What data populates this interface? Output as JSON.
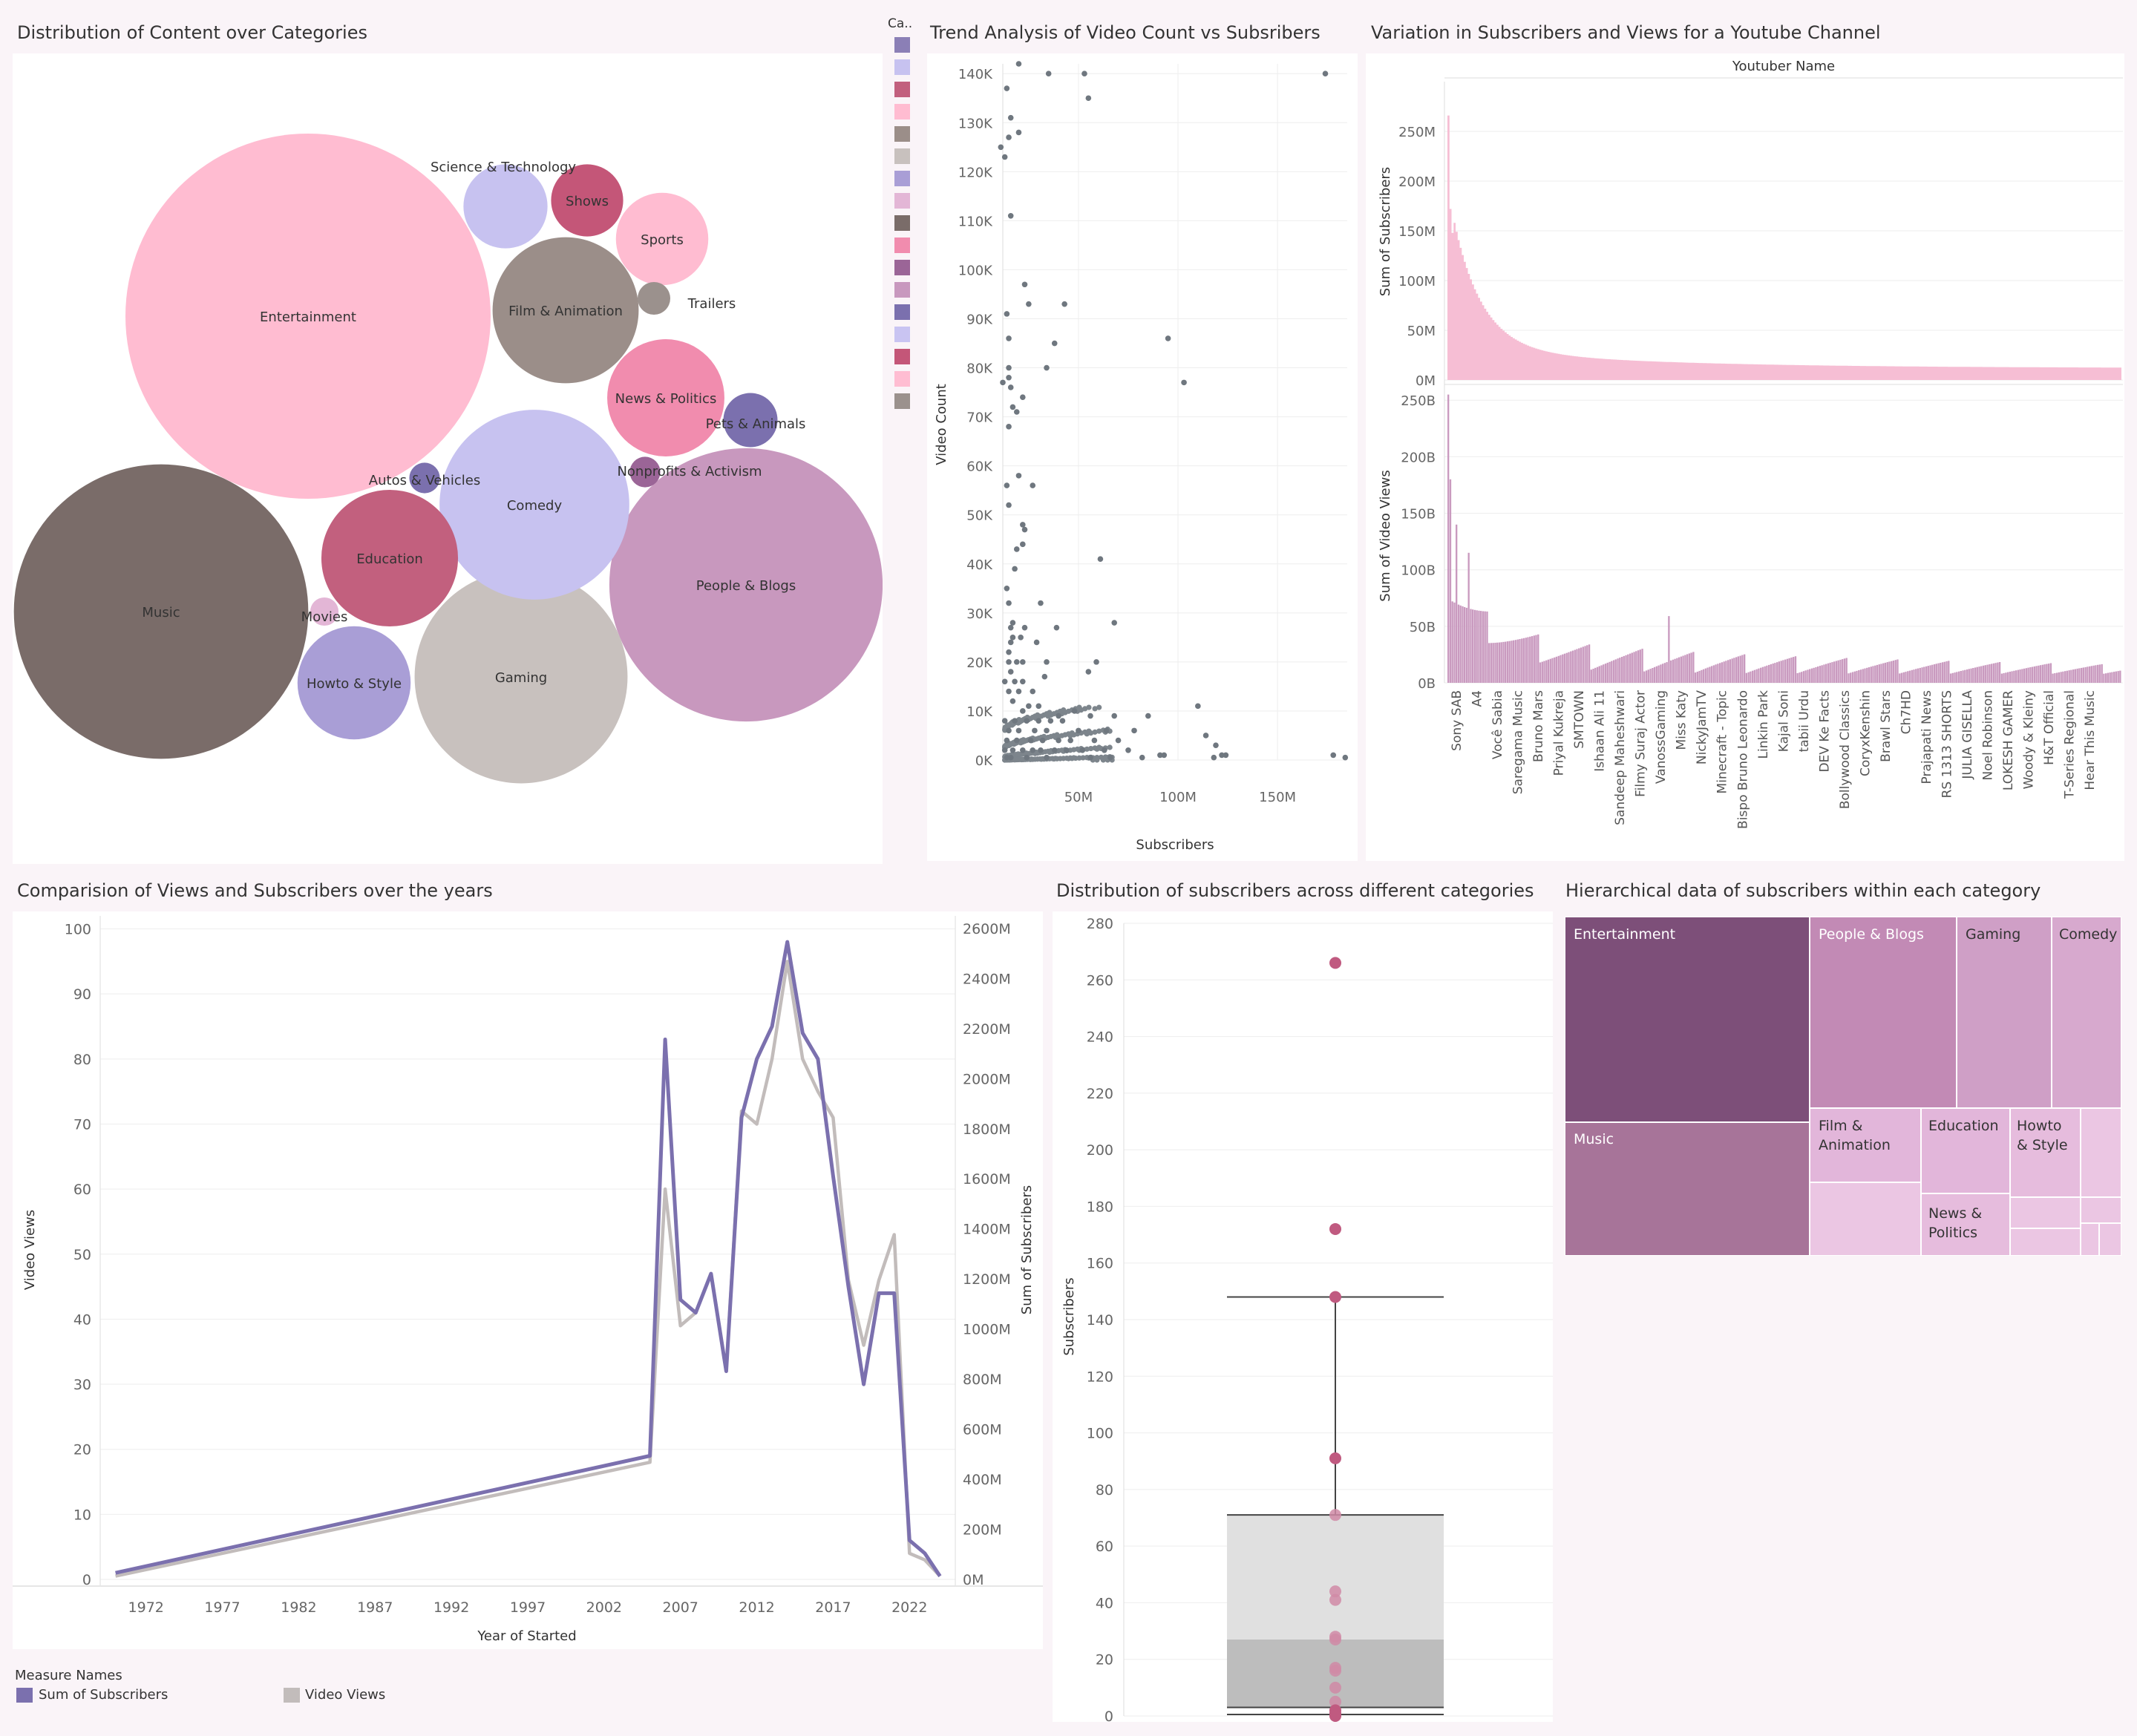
{
  "titles": {
    "bubble": "Distribution of Content over Categories",
    "scatter": "Trend Analysis of Video Count vs Subsribers",
    "bars": "Variation in Subscribers and Views for a Youtube Channel",
    "lines": "Comparision of Views and Subscribers over the years",
    "box": "Distribution of subscribers across different categories",
    "treemap": "Hierarchical data of subscribers within each category"
  },
  "category_legend": {
    "title": "Ca..",
    "swatches": [
      "#8b7fb6",
      "#c7c2f0",
      "#c2607e",
      "#ffbcd1",
      "#9b8e89",
      "#c8c1be",
      "#a99ed6",
      "#e3b6d6",
      "#7a6c69",
      "#f18cae",
      "#9b6597",
      "#c898be",
      "#7b70ae",
      "#c9c4f2",
      "#c45678",
      "#ffbdd2",
      "#9b918d"
    ]
  },
  "colors": {
    "subscribers_line": "#7b70ae",
    "views_line": "#c2bcbb",
    "bar_subs": "#f6bed4",
    "bar_views": "#c99abf",
    "scatter": "#7d858c",
    "box_point": "#c05a80"
  },
  "chart_data": [
    {
      "type": "bubble",
      "title": "Distribution of Content over Categories",
      "bubbles": [
        {
          "label": "Entertainment",
          "value": 100,
          "color": "#ffbcd1"
        },
        {
          "label": "Music",
          "value": 65,
          "color": "#7a6c69"
        },
        {
          "label": "People & Blogs",
          "value": 56,
          "color": "#c898be"
        },
        {
          "label": "Gaming",
          "value": 34,
          "color": "#c8c1be"
        },
        {
          "label": "Comedy",
          "value": 27,
          "color": "#c7c2f0"
        },
        {
          "label": "Film & Animation",
          "value": 16,
          "color": "#9b8e89"
        },
        {
          "label": "Education",
          "value": 14,
          "color": "#c2607e"
        },
        {
          "label": "Howto & Style",
          "value": 9.6,
          "color": "#a99ed6"
        },
        {
          "label": "News & Politics",
          "value": 10.3,
          "color": "#f18cae"
        },
        {
          "label": "Science & Technology",
          "value": 5.3,
          "color": "#c7c2f0"
        },
        {
          "label": "Sports",
          "value": 6.4,
          "color": "#ffbcd1"
        },
        {
          "label": "Shows",
          "value": 3.9,
          "color": "#c45678"
        },
        {
          "label": "Pets & Animals",
          "value": 2.2,
          "color": "#7b70ae"
        },
        {
          "label": "Trailers",
          "value": 0.8,
          "color": "#9b918d"
        },
        {
          "label": "Autos & Vehicles",
          "value": 0.7,
          "color": "#7b70ae"
        },
        {
          "label": "Nonprofits & Activism",
          "value": 0.7,
          "color": "#9b6597"
        },
        {
          "label": "Movies",
          "value": 0.6,
          "color": "#e3b6d6"
        }
      ]
    },
    {
      "type": "scatter",
      "title": "Trend Analysis of Video Count vs Subsribers",
      "xlabel": "Subscribers",
      "ylabel": "Video Count",
      "x_ticks": [
        "50M",
        "100M",
        "150M"
      ],
      "y_ticks": [
        "0K",
        "10K",
        "20K",
        "30K",
        "40K",
        "50K",
        "60K",
        "70K",
        "80K",
        "90K",
        "100K",
        "110K",
        "120K",
        "130K",
        "140K"
      ],
      "xlim": [
        12,
        185
      ],
      "ylim": [
        0,
        142
      ],
      "x_unit": "M subscribers",
      "y_unit": "K videos",
      "points": [
        [
          20,
          142
        ],
        [
          35,
          140
        ],
        [
          53,
          140
        ],
        [
          174,
          140
        ],
        [
          14,
          137
        ],
        [
          55,
          135
        ],
        [
          16,
          131
        ],
        [
          15,
          127
        ],
        [
          20,
          128
        ],
        [
          11,
          125
        ],
        [
          13,
          123
        ],
        [
          16,
          111
        ],
        [
          23,
          97
        ],
        [
          14,
          91
        ],
        [
          25,
          93
        ],
        [
          43,
          93
        ],
        [
          95,
          86
        ],
        [
          15,
          86
        ],
        [
          38,
          85
        ],
        [
          103,
          77
        ],
        [
          15,
          80
        ],
        [
          34,
          80
        ],
        [
          15,
          78
        ],
        [
          12,
          77
        ],
        [
          16,
          76
        ],
        [
          17,
          72
        ],
        [
          19,
          71
        ],
        [
          22,
          74
        ],
        [
          15,
          68
        ],
        [
          20,
          58
        ],
        [
          14,
          56
        ],
        [
          27,
          56
        ],
        [
          15,
          52
        ],
        [
          22,
          48
        ],
        [
          23,
          47
        ],
        [
          22,
          44
        ],
        [
          19,
          43
        ],
        [
          61,
          41
        ],
        [
          18,
          39
        ],
        [
          14,
          35
        ],
        [
          15,
          32
        ],
        [
          31,
          32
        ],
        [
          17,
          28
        ],
        [
          16,
          27
        ],
        [
          23,
          27
        ],
        [
          39,
          27
        ],
        [
          68,
          28
        ],
        [
          17,
          25
        ],
        [
          21,
          25
        ],
        [
          16,
          24
        ],
        [
          29,
          24
        ],
        [
          15,
          22
        ],
        [
          15,
          20
        ],
        [
          19,
          20
        ],
        [
          22,
          20
        ],
        [
          34,
          20
        ],
        [
          59,
          20
        ],
        [
          16,
          18
        ],
        [
          55,
          18
        ],
        [
          13,
          16
        ],
        [
          18,
          16
        ],
        [
          22,
          16
        ],
        [
          33,
          17
        ],
        [
          15,
          14
        ],
        [
          20,
          14
        ],
        [
          27,
          14
        ],
        [
          17,
          12
        ],
        [
          25,
          11
        ],
        [
          30,
          11
        ],
        [
          110,
          11
        ],
        [
          22,
          10
        ],
        [
          48,
          10
        ],
        [
          40,
          9
        ],
        [
          56,
          9
        ],
        [
          68,
          9
        ],
        [
          85,
          9
        ],
        [
          13,
          8
        ],
        [
          18,
          8
        ],
        [
          24,
          8
        ],
        [
          30,
          8
        ],
        [
          36,
          8
        ],
        [
          42,
          8
        ],
        [
          114,
          5
        ],
        [
          15,
          6
        ],
        [
          20,
          6
        ],
        [
          28,
          6
        ],
        [
          34,
          6
        ],
        [
          50,
          6
        ],
        [
          64,
          6
        ],
        [
          78,
          6
        ],
        [
          14,
          4
        ],
        [
          19,
          4
        ],
        [
          26,
          4
        ],
        [
          32,
          4
        ],
        [
          40,
          4
        ],
        [
          46,
          4
        ],
        [
          58,
          4
        ],
        [
          70,
          4
        ],
        [
          119,
          3
        ],
        [
          13,
          2
        ],
        [
          17,
          2
        ],
        [
          22,
          2
        ],
        [
          27,
          2
        ],
        [
          31,
          2
        ],
        [
          38,
          2
        ],
        [
          44,
          2
        ],
        [
          52,
          2
        ],
        [
          63,
          2
        ],
        [
          75,
          2
        ],
        [
          91,
          1
        ],
        [
          93,
          1
        ],
        [
          122,
          1
        ],
        [
          124,
          1
        ],
        [
          118,
          0.5
        ],
        [
          178,
          1
        ],
        [
          184,
          0.5
        ],
        [
          14,
          0.5
        ],
        [
          16,
          0.5
        ],
        [
          24,
          0.5
        ],
        [
          34,
          0.5
        ],
        [
          56,
          0.5
        ],
        [
          66,
          0.5
        ],
        [
          82,
          0.5
        ]
      ]
    },
    {
      "type": "bar",
      "title": "Variation in Subscribers and Views for a Youtube Channel",
      "header": "Youtuber Name",
      "series_subs": {
        "ylabel": "Sum of Subscribers",
        "ticks": [
          "0M",
          "50M",
          "100M",
          "150M",
          "200M",
          "250M"
        ],
        "ylim": [
          0,
          300
        ]
      },
      "series_views": {
        "ylabel": "Sum of Video Views",
        "ticks": [
          "0B",
          "50B",
          "100B",
          "150B",
          "200B",
          "250B"
        ],
        "ylim": [
          0,
          260
        ]
      },
      "names": [
        "Sony SAB",
        "A4",
        "Você Sabia",
        "Saregama Music",
        "Bruno Mars",
        "Priyal Kukreja",
        "SMTOWN",
        "Ishaan Ali 11",
        "Sandeep Maheshwari",
        "Filmy Suraj Actor",
        "VanossGaming",
        "Miss Katy",
        "NickyJamTV",
        "Minecraft - Topic",
        "Bispo Bruno Leonardo",
        "Linkin Park",
        "Kajal Soni",
        "tabii Urdu",
        "DEV Ke Facts",
        "Bollywood Classics",
        "CoryxKenshin",
        "Brawl Stars",
        "Ch7HD",
        "Prajapati News",
        "RS 1313 SHORTS",
        "JULIA GISELLA",
        "Noel Robinson",
        "LOKESH GAMER",
        "Woody & Kleiny",
        "H&T Official",
        "T-Series Regional",
        "Hear This Music"
      ],
      "subscribers_shape_M": {
        "first": 266,
        "second": 172,
        "third": 148,
        "mid": 25,
        "last": 12
      }
    },
    {
      "type": "line",
      "title": "Comparision of Views and Subscribers over the years",
      "xlabel": "Year of Started",
      "ylabel_left": "Video Views",
      "ylabel_right": "Sum of Subscribers",
      "x_ticks": [
        "1972",
        "1977",
        "1982",
        "1987",
        "1992",
        "1997",
        "2002",
        "2007",
        "2012",
        "2017",
        "2022"
      ],
      "y_ticks_left": [
        "0",
        "10",
        "20",
        "30",
        "40",
        "50",
        "60",
        "70",
        "80",
        "90",
        "100"
      ],
      "y_ticks_right": [
        "0M",
        "200M",
        "400M",
        "600M",
        "800M",
        "1000M",
        "1200M",
        "1400M",
        "1600M",
        "1800M",
        "2000M",
        "2200M",
        "2400M",
        "2600M"
      ],
      "xlim": [
        1969,
        2025
      ],
      "ylim_left": [
        0,
        102
      ],
      "series": [
        {
          "name": "Sum of Subscribers",
          "color": "#7b70ae",
          "x": [
            1970,
            2005,
            2006,
            2007,
            2008,
            2009,
            2010,
            2011,
            2012,
            2013,
            2014,
            2015,
            2016,
            2017,
            2018,
            2019,
            2020,
            2021,
            2022,
            2023,
            2024
          ],
          "y": [
            1,
            19,
            83,
            43,
            41,
            47,
            32,
            71,
            80,
            85,
            98,
            84,
            80,
            62,
            45,
            30,
            44,
            44,
            6,
            4,
            0.5
          ]
        },
        {
          "name": "Video Views",
          "color": "#c2bcbb",
          "x": [
            1970,
            2005,
            2006,
            2007,
            2008,
            2009,
            2010,
            2011,
            2012,
            2013,
            2014,
            2015,
            2016,
            2017,
            2018,
            2019,
            2020,
            2021,
            2022,
            2023,
            2024
          ],
          "y": [
            0.5,
            18,
            60,
            39,
            41,
            47,
            32,
            72,
            70,
            80,
            95,
            80,
            75,
            71,
            46,
            36,
            46,
            53,
            4,
            3,
            0.5
          ]
        }
      ],
      "legend_title": "Measure Names"
    },
    {
      "type": "box",
      "title": "Distribution of subscribers across different categories",
      "ylabel": "Subscribers",
      "y_ticks": [
        "0",
        "20",
        "40",
        "60",
        "80",
        "100",
        "120",
        "140",
        "160",
        "180",
        "200",
        "220",
        "240",
        "260",
        "280"
      ],
      "ylim": [
        0,
        280
      ],
      "box": {
        "whisker_low": 0,
        "q1": 3,
        "median": 27,
        "q3": 71,
        "whisker_high": 148
      },
      "points": [
        266,
        172,
        148,
        91,
        71,
        44,
        41,
        28,
        27,
        17,
        16,
        10,
        5,
        2,
        1,
        0
      ]
    },
    {
      "type": "treemap",
      "title": "Hierarchical data of subscribers within each category",
      "cells": [
        {
          "label": "Entertainment",
          "shade": "#7d4f79"
        },
        {
          "label": "Music",
          "shade": "#a77499"
        },
        {
          "label": "People & Blogs",
          "shade": "#c28ab5"
        },
        {
          "label": "Gaming",
          "shade": "#cf9fc6"
        },
        {
          "label": "Comedy",
          "shade": "#d7a9ce"
        },
        {
          "label": "Film & Animation",
          "shade": "#e2b6da"
        },
        {
          "label": "Education",
          "shade": "#e2b6da"
        },
        {
          "label": "Howto & Style",
          "shade": "#e6bcdd"
        },
        {
          "label": "News & Politics",
          "shade": "#e6bcdd"
        }
      ]
    }
  ]
}
